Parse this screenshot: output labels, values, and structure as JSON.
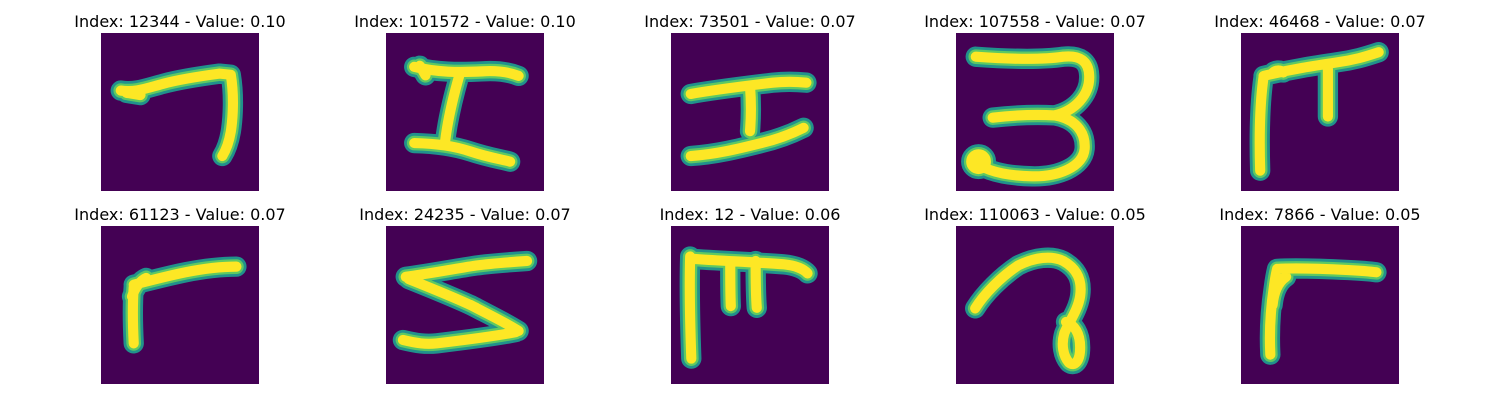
{
  "figure": {
    "colors": {
      "background": "#440154",
      "stroke_outer": "#21918c",
      "stroke_mid": "#5ec962",
      "stroke_core": "#fde725"
    },
    "panels": [
      {
        "title": "Index: 12344 - Value: 0.10",
        "index": 12344,
        "value": 0.1,
        "glyph": "seven-hook"
      },
      {
        "title": "Index: 101572 - Value: 0.10",
        "index": 101572,
        "value": 0.1,
        "glyph": "I-beam-wide"
      },
      {
        "title": "Index: 73501 - Value: 0.07",
        "index": 73501,
        "value": 0.07,
        "glyph": "I-beam"
      },
      {
        "title": "Index: 107558 - Value: 0.07",
        "index": 107558,
        "value": 0.07,
        "glyph": "three"
      },
      {
        "title": "Index: 46468 - Value: 0.07",
        "index": 46468,
        "value": 0.07,
        "glyph": "pi-corner"
      },
      {
        "title": "Index: 61123 - Value: 0.07",
        "index": 61123,
        "value": 0.07,
        "glyph": "corner-small"
      },
      {
        "title": "Index: 24235 - Value: 0.07",
        "index": 24235,
        "value": 0.07,
        "glyph": "zigzag-five"
      },
      {
        "title": "Index: 12 - Value: 0.06",
        "index": 12,
        "value": 0.06,
        "glyph": "pi-wide"
      },
      {
        "title": "Index: 110063 - Value: 0.05",
        "index": 110063,
        "value": 0.05,
        "glyph": "loop-hook"
      },
      {
        "title": "Index: 7866 - Value: 0.05",
        "index": 7866,
        "value": 0.05,
        "glyph": "corner-large"
      }
    ]
  }
}
